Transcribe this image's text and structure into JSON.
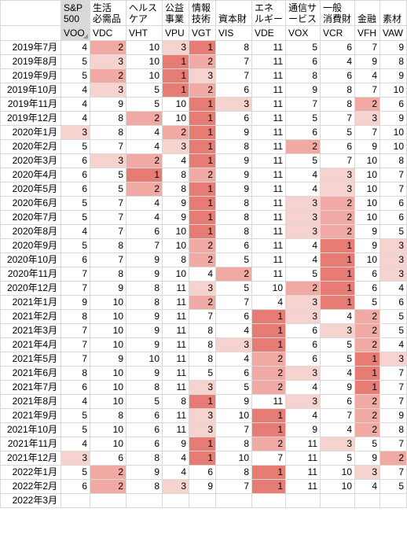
{
  "headers": {
    "row1": [
      "",
      "S&P 500",
      "生活 必需品",
      "ヘルス ケア",
      "公益 事業",
      "情報 技術",
      "資本財",
      "エネ ルギー",
      "通信サ ービス",
      "一般 消費財",
      "金融",
      "素材"
    ],
    "row2": [
      "",
      "VOO",
      "VDC",
      "VHT",
      "VPU",
      "VGT",
      "VIS",
      "VDE",
      "VOX",
      "VCR",
      "VFH",
      "VAW"
    ]
  },
  "rows": [
    {
      "date": "2019年7月",
      "ranks": [
        4,
        2,
        10,
        3,
        1,
        8,
        11,
        5,
        6,
        7,
        9
      ]
    },
    {
      "date": "2019年8月",
      "ranks": [
        5,
        3,
        10,
        1,
        2,
        7,
        11,
        6,
        4,
        9,
        8
      ]
    },
    {
      "date": "2019年9月",
      "ranks": [
        5,
        2,
        10,
        1,
        3,
        7,
        11,
        8,
        6,
        4,
        9
      ]
    },
    {
      "date": "2019年10月",
      "ranks": [
        4,
        3,
        5,
        1,
        2,
        6,
        11,
        9,
        8,
        7,
        10
      ]
    },
    {
      "date": "2019年11月",
      "ranks": [
        4,
        9,
        5,
        10,
        1,
        3,
        11,
        7,
        8,
        2,
        6
      ]
    },
    {
      "date": "2019年12月",
      "ranks": [
        4,
        8,
        2,
        10,
        1,
        6,
        11,
        5,
        7,
        3,
        9
      ]
    },
    {
      "date": "2020年1月",
      "ranks": [
        3,
        8,
        4,
        2,
        1,
        9,
        11,
        6,
        5,
        7,
        10
      ]
    },
    {
      "date": "2020年2月",
      "ranks": [
        5,
        7,
        4,
        3,
        1,
        8,
        11,
        2,
        6,
        9,
        10
      ]
    },
    {
      "date": "2020年3月",
      "ranks": [
        6,
        3,
        2,
        4,
        1,
        9,
        11,
        5,
        7,
        10,
        8
      ]
    },
    {
      "date": "2020年4月",
      "ranks": [
        6,
        5,
        1,
        8,
        2,
        9,
        11,
        4,
        3,
        10,
        7
      ]
    },
    {
      "date": "2020年5月",
      "ranks": [
        6,
        5,
        2,
        8,
        1,
        9,
        11,
        4,
        3,
        10,
        7
      ]
    },
    {
      "date": "2020年6月",
      "ranks": [
        5,
        7,
        4,
        9,
        1,
        8,
        11,
        3,
        2,
        10,
        6
      ]
    },
    {
      "date": "2020年7月",
      "ranks": [
        5,
        7,
        4,
        9,
        1,
        8,
        11,
        3,
        2,
        10,
        6
      ]
    },
    {
      "date": "2020年8月",
      "ranks": [
        4,
        7,
        6,
        10,
        1,
        8,
        11,
        3,
        2,
        9,
        5
      ]
    },
    {
      "date": "2020年9月",
      "ranks": [
        5,
        8,
        7,
        10,
        2,
        6,
        11,
        4,
        1,
        9,
        3
      ]
    },
    {
      "date": "2020年10月",
      "ranks": [
        6,
        7,
        9,
        8,
        2,
        5,
        11,
        4,
        1,
        10,
        3
      ]
    },
    {
      "date": "2020年11月",
      "ranks": [
        7,
        8,
        9,
        10,
        4,
        2,
        11,
        5,
        1,
        6,
        3
      ]
    },
    {
      "date": "2020年12月",
      "ranks": [
        7,
        9,
        8,
        11,
        3,
        5,
        10,
        2,
        1,
        6,
        4
      ]
    },
    {
      "date": "2021年1月",
      "ranks": [
        9,
        10,
        8,
        11,
        2,
        7,
        4,
        3,
        1,
        5,
        6
      ]
    },
    {
      "date": "2021年2月",
      "ranks": [
        8,
        10,
        9,
        11,
        7,
        6,
        1,
        3,
        4,
        2,
        5
      ]
    },
    {
      "date": "2021年3月",
      "ranks": [
        7,
        10,
        9,
        11,
        8,
        4,
        1,
        6,
        3,
        2,
        5
      ]
    },
    {
      "date": "2021年4月",
      "ranks": [
        7,
        10,
        9,
        11,
        8,
        3,
        1,
        6,
        5,
        2,
        4
      ]
    },
    {
      "date": "2021年5月",
      "ranks": [
        7,
        9,
        10,
        11,
        8,
        4,
        2,
        6,
        5,
        1,
        3
      ]
    },
    {
      "date": "2021年6月",
      "ranks": [
        8,
        10,
        9,
        11,
        5,
        6,
        2,
        3,
        4,
        1,
        7
      ]
    },
    {
      "date": "2021年7月",
      "ranks": [
        6,
        10,
        8,
        11,
        3,
        5,
        2,
        4,
        9,
        1,
        7
      ]
    },
    {
      "date": "2021年8月",
      "ranks": [
        4,
        10,
        5,
        8,
        1,
        9,
        11,
        3,
        6,
        2,
        7
      ]
    },
    {
      "date": "2021年9月",
      "ranks": [
        5,
        8,
        6,
        11,
        3,
        10,
        1,
        4,
        7,
        2,
        9
      ]
    },
    {
      "date": "2021年10月",
      "ranks": [
        5,
        10,
        6,
        11,
        3,
        7,
        1,
        9,
        4,
        2,
        8
      ]
    },
    {
      "date": "2021年11月",
      "ranks": [
        4,
        10,
        6,
        9,
        1,
        8,
        2,
        11,
        3,
        5,
        7
      ]
    },
    {
      "date": "2021年12月",
      "ranks": [
        3,
        6,
        8,
        4,
        1,
        10,
        7,
        11,
        5,
        9,
        2
      ]
    },
    {
      "date": "2022年1月",
      "ranks": [
        5,
        2,
        9,
        4,
        6,
        8,
        1,
        11,
        10,
        3,
        7
      ]
    },
    {
      "date": "2022年2月",
      "ranks": [
        6,
        2,
        8,
        3,
        9,
        7,
        1,
        11,
        10,
        4,
        5
      ]
    },
    {
      "date": "2022年3月",
      "ranks": []
    }
  ],
  "colors": {
    "rank1": "#e67c73",
    "rank2": "#f0a9a3",
    "rank3": "#f7d3d0",
    "header_selected": "#d9d9d9",
    "grid": "#d9d9d9"
  }
}
